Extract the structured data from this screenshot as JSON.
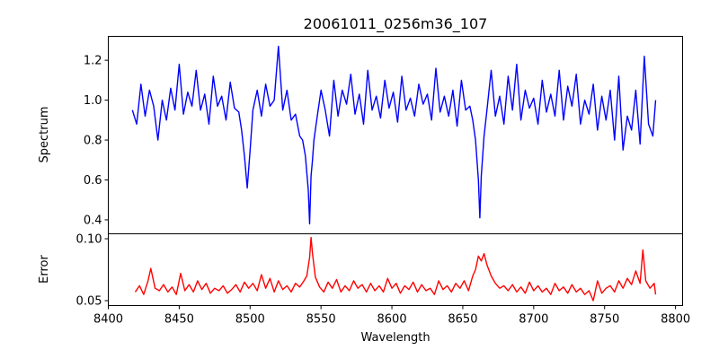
{
  "chart_data": [
    {
      "type": "line",
      "title": "20061011_0256m36_107",
      "ylabel": "Spectrum",
      "xlabel": "",
      "xlim": [
        8400,
        8805
      ],
      "ylim": [
        0.33,
        1.32
      ],
      "yticks": [
        0.4,
        0.6,
        0.8,
        1.0,
        1.2
      ],
      "ytick_labels": [
        "0.4",
        "0.6",
        "0.8",
        "1.0",
        "1.2"
      ],
      "color": "#0000ff",
      "series": [
        {
          "x": [
            8417,
            8420,
            8423,
            8426,
            8429,
            8432,
            8435,
            8438,
            8441,
            8444,
            8447,
            8450,
            8453,
            8456,
            8459,
            8462,
            8465,
            8468,
            8471,
            8474,
            8477,
            8480,
            8483,
            8486,
            8489,
            8492,
            8494,
            8496,
            8498,
            8500,
            8502,
            8505,
            8508,
            8511,
            8514,
            8517,
            8520,
            8523,
            8526,
            8529,
            8532,
            8535,
            8537,
            8539,
            8541,
            8542,
            8543,
            8544,
            8545,
            8547,
            8550,
            8553,
            8556,
            8559,
            8562,
            8565,
            8568,
            8571,
            8574,
            8577,
            8580,
            8583,
            8586,
            8589,
            8592,
            8595,
            8598,
            8601,
            8604,
            8607,
            8610,
            8613,
            8616,
            8619,
            8622,
            8625,
            8628,
            8631,
            8634,
            8637,
            8640,
            8643,
            8646,
            8649,
            8652,
            8655,
            8657,
            8659,
            8661,
            8662,
            8663,
            8665,
            8667,
            8670,
            8673,
            8676,
            8679,
            8682,
            8685,
            8688,
            8691,
            8694,
            8697,
            8700,
            8703,
            8706,
            8709,
            8712,
            8715,
            8718,
            8721,
            8724,
            8727,
            8730,
            8733,
            8736,
            8739,
            8742,
            8745,
            8748,
            8751,
            8754,
            8757,
            8760,
            8763,
            8766,
            8769,
            8772,
            8775,
            8778,
            8781,
            8784,
            8786
          ],
          "y": [
            0.95,
            0.88,
            1.08,
            0.92,
            1.05,
            0.97,
            0.8,
            1.0,
            0.9,
            1.06,
            0.95,
            1.18,
            0.93,
            1.04,
            0.97,
            1.15,
            0.95,
            1.03,
            0.88,
            1.12,
            0.97,
            1.02,
            0.9,
            1.09,
            0.96,
            0.94,
            0.85,
            0.72,
            0.56,
            0.75,
            0.95,
            1.05,
            0.92,
            1.08,
            0.97,
            1.0,
            1.27,
            0.95,
            1.05,
            0.9,
            0.93,
            0.82,
            0.8,
            0.72,
            0.55,
            0.38,
            0.62,
            0.7,
            0.8,
            0.9,
            1.05,
            0.95,
            0.82,
            1.1,
            0.92,
            1.05,
            0.98,
            1.13,
            0.93,
            1.03,
            0.88,
            1.15,
            0.95,
            1.02,
            0.91,
            1.1,
            0.96,
            1.04,
            0.89,
            1.12,
            0.95,
            1.01,
            0.92,
            1.08,
            0.98,
            1.03,
            0.9,
            1.16,
            0.94,
            1.02,
            0.92,
            1.05,
            0.87,
            1.1,
            0.95,
            0.97,
            0.9,
            0.8,
            0.6,
            0.41,
            0.62,
            0.82,
            0.95,
            1.15,
            0.92,
            1.02,
            0.88,
            1.12,
            0.95,
            1.18,
            0.9,
            1.05,
            0.96,
            1.01,
            0.88,
            1.1,
            0.94,
            1.03,
            0.92,
            1.15,
            0.9,
            1.07,
            0.97,
            1.13,
            0.88,
            1.0,
            0.93,
            1.08,
            0.85,
            1.02,
            0.9,
            1.05,
            0.8,
            1.12,
            0.75,
            0.92,
            0.85,
            1.05,
            0.78,
            1.22,
            0.88,
            0.82,
            1.0
          ]
        }
      ]
    },
    {
      "type": "line",
      "title": "",
      "ylabel": "Error",
      "xlabel": "Wavelength",
      "xlim": [
        8400,
        8805
      ],
      "ylim": [
        0.046,
        0.104
      ],
      "xticks": [
        8400,
        8450,
        8500,
        8550,
        8600,
        8650,
        8700,
        8750,
        8800
      ],
      "xtick_labels": [
        "8400",
        "8450",
        "8500",
        "8550",
        "8600",
        "8650",
        "8700",
        "8750",
        "8800"
      ],
      "yticks": [
        0.05,
        0.1
      ],
      "ytick_labels": [
        "0.05",
        "0.10"
      ],
      "color": "#ff0000",
      "series": [
        {
          "x": [
            8419,
            8422,
            8425,
            8428,
            8430,
            8433,
            8436,
            8439,
            8442,
            8445,
            8448,
            8451,
            8454,
            8457,
            8460,
            8463,
            8466,
            8469,
            8472,
            8475,
            8478,
            8481,
            8484,
            8487,
            8490,
            8493,
            8496,
            8499,
            8502,
            8505,
            8508,
            8511,
            8514,
            8517,
            8520,
            8523,
            8526,
            8529,
            8532,
            8535,
            8538,
            8540,
            8542,
            8543,
            8544,
            8546,
            8549,
            8552,
            8555,
            8558,
            8561,
            8564,
            8567,
            8570,
            8573,
            8576,
            8579,
            8582,
            8585,
            8588,
            8591,
            8594,
            8597,
            8600,
            8603,
            8606,
            8609,
            8612,
            8615,
            8618,
            8621,
            8624,
            8627,
            8630,
            8633,
            8636,
            8639,
            8642,
            8645,
            8648,
            8651,
            8654,
            8657,
            8659,
            8661,
            8663,
            8665,
            8667,
            8670,
            8673,
            8676,
            8679,
            8682,
            8685,
            8688,
            8691,
            8694,
            8697,
            8700,
            8703,
            8706,
            8709,
            8712,
            8715,
            8718,
            8721,
            8724,
            8727,
            8730,
            8733,
            8736,
            8739,
            8742,
            8745,
            8748,
            8751,
            8754,
            8757,
            8760,
            8763,
            8766,
            8769,
            8772,
            8775,
            8777,
            8779,
            8782,
            8785,
            8786
          ],
          "y": [
            0.057,
            0.062,
            0.055,
            0.066,
            0.076,
            0.06,
            0.058,
            0.063,
            0.057,
            0.061,
            0.055,
            0.072,
            0.058,
            0.063,
            0.057,
            0.066,
            0.059,
            0.064,
            0.056,
            0.06,
            0.058,
            0.062,
            0.056,
            0.059,
            0.063,
            0.057,
            0.065,
            0.06,
            0.064,
            0.058,
            0.071,
            0.06,
            0.068,
            0.057,
            0.066,
            0.059,
            0.062,
            0.057,
            0.064,
            0.061,
            0.066,
            0.07,
            0.085,
            0.101,
            0.088,
            0.069,
            0.061,
            0.057,
            0.065,
            0.06,
            0.067,
            0.057,
            0.062,
            0.058,
            0.066,
            0.06,
            0.063,
            0.057,
            0.064,
            0.058,
            0.062,
            0.057,
            0.068,
            0.06,
            0.064,
            0.056,
            0.062,
            0.059,
            0.065,
            0.057,
            0.063,
            0.058,
            0.06,
            0.055,
            0.066,
            0.059,
            0.062,
            0.057,
            0.064,
            0.06,
            0.066,
            0.058,
            0.07,
            0.075,
            0.086,
            0.082,
            0.088,
            0.079,
            0.07,
            0.064,
            0.06,
            0.062,
            0.058,
            0.063,
            0.057,
            0.061,
            0.056,
            0.065,
            0.058,
            0.062,
            0.057,
            0.06,
            0.055,
            0.064,
            0.058,
            0.061,
            0.056,
            0.063,
            0.057,
            0.06,
            0.055,
            0.058,
            0.05,
            0.066,
            0.056,
            0.06,
            0.062,
            0.057,
            0.066,
            0.06,
            0.068,
            0.063,
            0.074,
            0.064,
            0.091,
            0.066,
            0.06,
            0.064,
            0.055
          ]
        }
      ]
    }
  ]
}
